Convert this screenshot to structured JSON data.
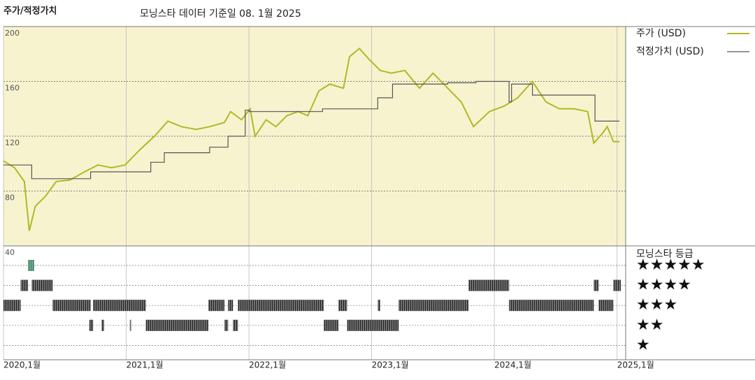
{
  "chart_data": {
    "type": "line",
    "title": "주가/적정가치",
    "subtitle": "모닝스타 데이터 기준일 08. 1월 2025",
    "xlim": [
      2020.0,
      2025.07
    ],
    "xticks": [
      {
        "value": 2020,
        "label": "2020,1월"
      },
      {
        "value": 2021,
        "label": "2021,1월"
      },
      {
        "value": 2022,
        "label": "2022,1월"
      },
      {
        "value": 2023,
        "label": "2023,1월"
      },
      {
        "value": 2024,
        "label": "2024,1월"
      },
      {
        "value": 2025,
        "label": "2025,1월"
      }
    ],
    "ylim": [
      40,
      200
    ],
    "yticks": [
      40,
      80,
      120,
      160,
      200
    ],
    "grid": true,
    "background": "#f7f3cf",
    "series": [
      {
        "name": "주가 (USD)",
        "color": "#b2b825",
        "x": [
          2020.0,
          2020.09,
          2020.17,
          2020.21,
          2020.26,
          2020.34,
          2020.43,
          2020.54,
          2020.66,
          2020.77,
          2020.88,
          2020.99,
          2021.11,
          2021.23,
          2021.34,
          2021.45,
          2021.57,
          2021.68,
          2021.8,
          2021.85,
          2021.94,
          2022.01,
          2022.05,
          2022.14,
          2022.22,
          2022.31,
          2022.4,
          2022.48,
          2022.57,
          2022.66,
          2022.77,
          2022.82,
          2022.9,
          2022.98,
          2023.07,
          2023.16,
          2023.27,
          2023.39,
          2023.5,
          2023.62,
          2023.73,
          2023.83,
          2023.96,
          2024.08,
          2024.19,
          2024.31,
          2024.42,
          2024.53,
          2024.65,
          2024.76,
          2024.81,
          2024.88,
          2024.92,
          2024.97,
          2025.02
        ],
        "values": [
          102,
          97,
          87,
          51,
          69,
          76,
          87,
          88,
          94,
          99,
          97,
          99,
          110,
          120,
          131,
          127,
          125,
          127,
          130,
          138,
          132,
          140,
          120,
          132,
          127,
          135,
          138,
          135,
          153,
          158,
          155,
          178,
          184,
          176,
          168,
          166,
          168,
          155,
          166,
          155,
          145,
          127,
          138,
          142,
          148,
          160,
          145,
          140,
          140,
          138,
          115,
          122,
          127,
          116,
          116
        ]
      },
      {
        "name": "적정가치 (USD)",
        "color": "#555555",
        "x": [
          2020.0,
          2020.23,
          2020.23,
          2020.71,
          2020.71,
          2021.2,
          2021.2,
          2021.31,
          2021.31,
          2021.68,
          2021.68,
          2021.83,
          2021.83,
          2021.97,
          2021.97,
          2022.0,
          2022.0,
          2022.6,
          2022.6,
          2023.05,
          2023.05,
          2023.17,
          2023.17,
          2023.62,
          2023.62,
          2023.85,
          2023.85,
          2024.12,
          2024.12,
          2024.14,
          2024.14,
          2024.31,
          2024.31,
          2024.82,
          2024.82,
          2025.02
        ],
        "values": [
          99,
          99,
          89,
          89,
          94,
          94,
          101,
          101,
          108,
          108,
          112,
          112,
          120,
          120,
          139,
          139,
          138,
          138,
          140,
          140,
          148,
          148,
          158,
          158,
          159,
          159,
          160,
          160,
          145,
          145,
          158,
          158,
          150,
          150,
          131,
          131
        ]
      }
    ],
    "rating_title": "모닝스타 등급",
    "rating_levels": [
      {
        "label": "★★★★★",
        "stars": 5,
        "color": "#2e7d5b"
      },
      {
        "label": "★★★★",
        "stars": 4,
        "color": "#222222"
      },
      {
        "label": "★★★",
        "stars": 3,
        "color": "#222222"
      },
      {
        "label": "★★",
        "stars": 2,
        "color": "#222222"
      },
      {
        "label": "★",
        "stars": 1,
        "color": "#222222"
      }
    ],
    "rating_periods": [
      {
        "start": 2020.2,
        "end": 2020.25,
        "stars": 5
      },
      {
        "start": 2020.14,
        "end": 2020.2,
        "stars": 4
      },
      {
        "start": 2020.23,
        "end": 2020.4,
        "stars": 4
      },
      {
        "start": 2023.79,
        "end": 2024.12,
        "stars": 4
      },
      {
        "start": 2024.81,
        "end": 2024.85,
        "stars": 4
      },
      {
        "start": 2024.97,
        "end": 2025.03,
        "stars": 4
      },
      {
        "start": 2020.0,
        "end": 2020.14,
        "stars": 3
      },
      {
        "start": 2020.4,
        "end": 2020.71,
        "stars": 3
      },
      {
        "start": 2020.73,
        "end": 2021.16,
        "stars": 3
      },
      {
        "start": 2021.67,
        "end": 2021.8,
        "stars": 3
      },
      {
        "start": 2021.83,
        "end": 2021.87,
        "stars": 3
      },
      {
        "start": 2021.91,
        "end": 2022.61,
        "stars": 3
      },
      {
        "start": 2022.73,
        "end": 2022.8,
        "stars": 3
      },
      {
        "start": 2023.05,
        "end": 2023.07,
        "stars": 3
      },
      {
        "start": 2023.22,
        "end": 2023.79,
        "stars": 3
      },
      {
        "start": 2024.12,
        "end": 2024.81,
        "stars": 3
      },
      {
        "start": 2024.85,
        "end": 2024.97,
        "stars": 3
      },
      {
        "start": 2020.7,
        "end": 2020.73,
        "stars": 2
      },
      {
        "start": 2020.8,
        "end": 2020.82,
        "stars": 2
      },
      {
        "start": 2021.03,
        "end": 2021.04,
        "stars": 2
      },
      {
        "start": 2021.16,
        "end": 2021.67,
        "stars": 2
      },
      {
        "start": 2021.8,
        "end": 2021.83,
        "stars": 2
      },
      {
        "start": 2021.87,
        "end": 2021.91,
        "stars": 2
      },
      {
        "start": 2022.61,
        "end": 2022.73,
        "stars": 2
      },
      {
        "start": 2022.8,
        "end": 2023.22,
        "stars": 2
      }
    ]
  }
}
